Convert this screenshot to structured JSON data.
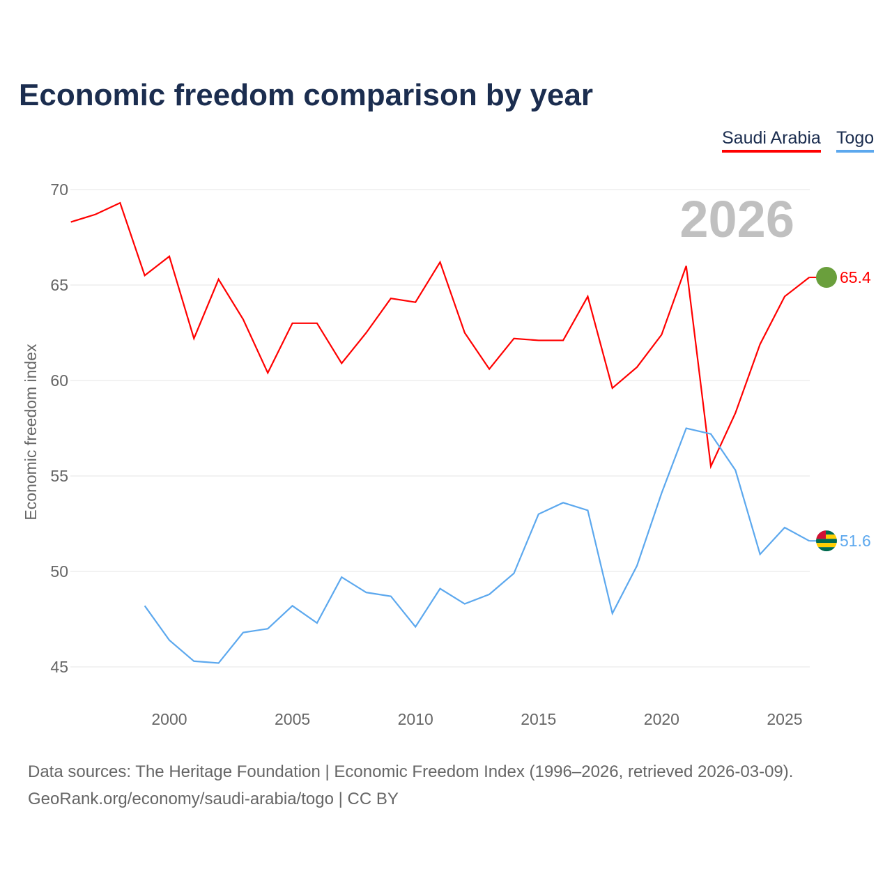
{
  "chart_data": {
    "type": "line",
    "title": "Economic freedom comparison by year",
    "xlabel": "",
    "ylabel": "Economic freedom index",
    "xlim": [
      1996,
      2026
    ],
    "ylim": [
      45,
      70
    ],
    "yticks": [
      45,
      50,
      55,
      60,
      65,
      70
    ],
    "xticks": [
      2000,
      2005,
      2010,
      2015,
      2020,
      2025
    ],
    "grid": true,
    "legend_position": "top-right",
    "year_label": "2026",
    "series": [
      {
        "name": "Saudi Arabia",
        "color": "#ff0000",
        "start": 1996,
        "end_label": "65.4",
        "values": [
          68.3,
          68.7,
          69.3,
          65.5,
          66.5,
          62.2,
          65.3,
          63.2,
          60.4,
          63.0,
          63.0,
          60.9,
          62.5,
          64.3,
          64.1,
          66.2,
          62.5,
          60.6,
          62.2,
          62.1,
          62.1,
          64.4,
          59.6,
          60.7,
          62.4,
          66.0,
          55.5,
          58.3,
          61.9,
          64.4,
          65.4
        ]
      },
      {
        "name": "Togo",
        "color": "#5ca8ee",
        "start": 1999,
        "end_label": "51.6",
        "values": [
          48.2,
          46.4,
          45.3,
          45.2,
          46.8,
          47.0,
          48.2,
          47.3,
          49.7,
          48.9,
          48.7,
          47.1,
          49.1,
          48.3,
          48.8,
          49.9,
          53.0,
          53.6,
          53.2,
          47.8,
          50.3,
          54.1,
          57.5,
          57.2,
          55.3,
          50.9,
          52.3,
          51.6
        ]
      }
    ]
  },
  "source": {
    "line1": "Data sources: The Heritage Foundation | Economic Freedom Index (1996–2026, retrieved 2026-03-09).",
    "line2": "GeoRank.org/economy/saudi-arabia/togo | CC BY"
  }
}
